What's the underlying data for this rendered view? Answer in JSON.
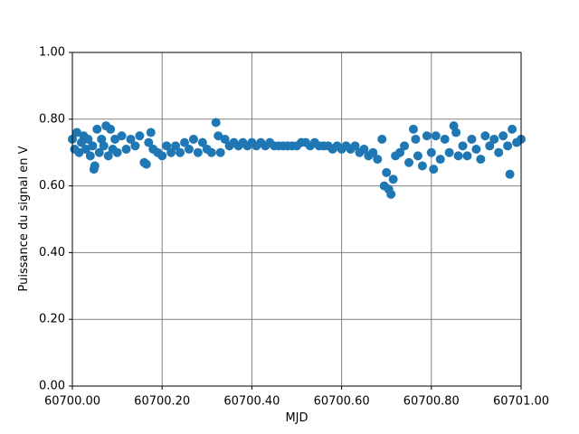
{
  "chart_data": {
    "type": "scatter",
    "xlabel": "MJD",
    "ylabel": "Puissance du signal en V",
    "color": "#1f77b4",
    "grid": true,
    "xlim": [
      60700,
      60701
    ],
    "xticks": [
      {
        "value": 60700,
        "label": "60700.00"
      },
      {
        "value": 60700.2,
        "label": "60700.20"
      },
      {
        "value": 60700.4,
        "label": "60700.40"
      },
      {
        "value": 60700.6,
        "label": "60700.60"
      },
      {
        "value": 60700.8,
        "label": "60700.80"
      },
      {
        "value": 60701,
        "label": "60701.00"
      }
    ],
    "ylim": [
      0,
      1
    ],
    "yticks": [
      {
        "value": 0,
        "label": "0.00"
      },
      {
        "value": 0.2,
        "label": "0.20"
      },
      {
        "value": 0.4,
        "label": "0.40"
      },
      {
        "value": 0.6,
        "label": "0.60"
      },
      {
        "value": 0.8,
        "label": "0.80"
      },
      {
        "value": 1,
        "label": "1.00"
      }
    ],
    "x": [
      60700.0,
      60700.005,
      60700.01,
      60700.015,
      60700.02,
      60700.025,
      60700.03,
      60700.035,
      60700.04,
      60700.045,
      60700.048,
      60700.05,
      60700.055,
      60700.06,
      60700.065,
      60700.07,
      60700.075,
      60700.08,
      60700.085,
      60700.09,
      60700.095,
      60700.1,
      60700.11,
      60700.12,
      60700.13,
      60700.14,
      60700.15,
      60700.16,
      60700.165,
      60700.17,
      60700.175,
      60700.18,
      60700.19,
      60700.2,
      60700.21,
      60700.22,
      60700.23,
      60700.24,
      60700.25,
      60700.26,
      60700.27,
      60700.28,
      60700.29,
      60700.3,
      60700.31,
      60700.32,
      60700.325,
      60700.33,
      60700.34,
      60700.35,
      60700.36,
      60700.37,
      60700.38,
      60700.39,
      60700.4,
      60700.41,
      60700.42,
      60700.43,
      60700.44,
      60700.45,
      60700.46,
      60700.47,
      60700.48,
      60700.49,
      60700.5,
      60700.51,
      60700.52,
      60700.53,
      60700.54,
      60700.55,
      60700.56,
      60700.57,
      60700.58,
      60700.59,
      60700.6,
      60700.61,
      60700.62,
      60700.63,
      60700.64,
      60700.65,
      60700.66,
      60700.67,
      60700.68,
      60700.69,
      60700.695,
      60700.7,
      60700.705,
      60700.71,
      60700.715,
      60700.72,
      60700.73,
      60700.74,
      60700.75,
      60700.76,
      60700.765,
      60700.77,
      60700.78,
      60700.79,
      60700.8,
      60700.805,
      60700.81,
      60700.82,
      60700.83,
      60700.84,
      60700.85,
      60700.855,
      60700.86,
      60700.87,
      60700.88,
      60700.89,
      60700.9,
      60700.91,
      60700.92,
      60700.93,
      60700.94,
      60700.95,
      60700.96,
      60700.97,
      60700.975,
      60700.98,
      60700.99,
      60701.0
    ],
    "values": [
      0.74,
      0.71,
      0.76,
      0.7,
      0.73,
      0.75,
      0.71,
      0.74,
      0.69,
      0.72,
      0.65,
      0.66,
      0.77,
      0.7,
      0.74,
      0.72,
      0.78,
      0.69,
      0.77,
      0.71,
      0.74,
      0.7,
      0.75,
      0.71,
      0.74,
      0.72,
      0.75,
      0.67,
      0.665,
      0.73,
      0.76,
      0.71,
      0.7,
      0.69,
      0.72,
      0.7,
      0.72,
      0.7,
      0.73,
      0.71,
      0.74,
      0.7,
      0.73,
      0.71,
      0.7,
      0.79,
      0.75,
      0.7,
      0.74,
      0.72,
      0.73,
      0.72,
      0.73,
      0.72,
      0.73,
      0.72,
      0.73,
      0.72,
      0.73,
      0.72,
      0.72,
      0.72,
      0.72,
      0.72,
      0.72,
      0.73,
      0.73,
      0.72,
      0.73,
      0.72,
      0.72,
      0.72,
      0.71,
      0.72,
      0.71,
      0.72,
      0.71,
      0.72,
      0.7,
      0.71,
      0.69,
      0.7,
      0.68,
      0.74,
      0.6,
      0.64,
      0.59,
      0.575,
      0.62,
      0.69,
      0.7,
      0.72,
      0.67,
      0.77,
      0.74,
      0.69,
      0.66,
      0.75,
      0.7,
      0.65,
      0.75,
      0.68,
      0.74,
      0.7,
      0.78,
      0.76,
      0.69,
      0.72,
      0.69,
      0.74,
      0.71,
      0.68,
      0.75,
      0.72,
      0.74,
      0.7,
      0.75,
      0.72,
      0.635,
      0.77,
      0.73,
      0.74
    ]
  }
}
